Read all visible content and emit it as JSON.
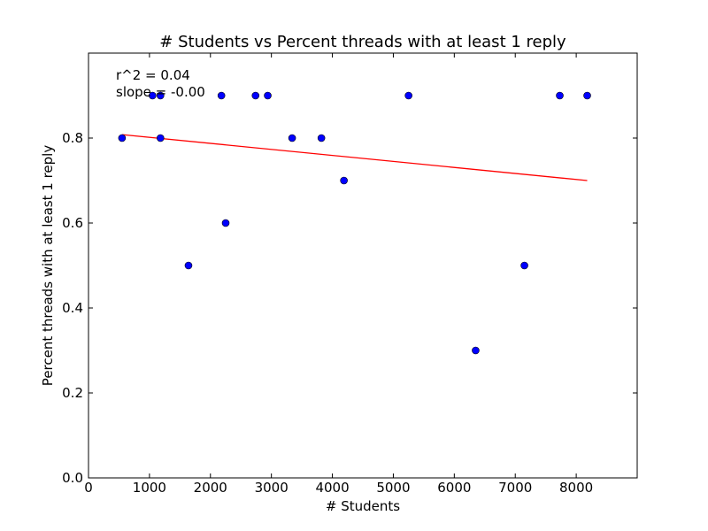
{
  "chart_data": {
    "type": "scatter",
    "title": "# Students vs Percent threads with at least 1 reply",
    "xlabel": "# Students",
    "ylabel": "Percent threads with at least 1 reply",
    "xlim": [
      0,
      9000
    ],
    "ylim": [
      0.0,
      1.0
    ],
    "xticks": [
      0,
      1000,
      2000,
      3000,
      4000,
      5000,
      6000,
      7000,
      8000
    ],
    "xtick_labels": [
      "0",
      "1000",
      "2000",
      "3000",
      "4000",
      "5000",
      "6000",
      "7000",
      "8000"
    ],
    "yticks": [
      0.0,
      0.2,
      0.4,
      0.6,
      0.8
    ],
    "ytick_labels": [
      "0.0",
      "0.2",
      "0.4",
      "0.6",
      "0.8"
    ],
    "grid": false,
    "series": [
      {
        "type": "scatter",
        "color": "#0000ff",
        "x": [
          550,
          1050,
          1180,
          1180,
          1640,
          2180,
          2250,
          2740,
          2940,
          3340,
          3820,
          4190,
          5250,
          6350,
          7150,
          7730,
          8180
        ],
        "y": [
          0.8,
          0.9,
          0.9,
          0.8,
          0.5,
          0.9,
          0.6,
          0.9,
          0.9,
          0.8,
          0.8,
          0.7,
          0.9,
          0.3,
          0.5,
          0.9,
          0.9
        ]
      },
      {
        "type": "line",
        "color": "#ff0000",
        "x": [
          550,
          8180
        ],
        "y": [
          0.808,
          0.7
        ]
      }
    ],
    "annotations": [
      "r^2 = 0.04",
      "slope = -0.00"
    ]
  }
}
